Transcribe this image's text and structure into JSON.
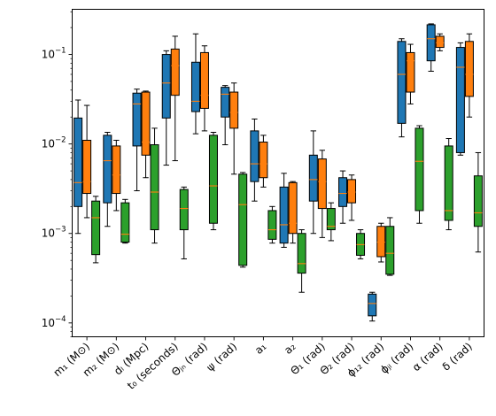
{
  "chart_data": {
    "type": "box",
    "y_scale": "log",
    "ylim": [
      7e-05,
      0.32
    ],
    "y_ticks": [
      {
        "value": 0.0001,
        "base": "10",
        "exp": "−4"
      },
      {
        "value": 0.001,
        "base": "10",
        "exp": "−3"
      },
      {
        "value": 0.01,
        "base": "10",
        "exp": "−2"
      },
      {
        "value": 0.1,
        "base": "10",
        "exp": "−1"
      }
    ],
    "grid": false,
    "legend": null,
    "series_colors": [
      "#1f77b4",
      "#ff7f0e",
      "#2ca02c"
    ],
    "median_color": "#ff7f0e",
    "categories": [
      {
        "label": "m₁ (M⊙)"
      },
      {
        "label": "m₂ (M⊙)"
      },
      {
        "label": "dₗ (Mpc)"
      },
      {
        "label": "t₀ (seconds)"
      },
      {
        "label": "Θⱼₙ (rad)"
      },
      {
        "label": "ψ (rad)"
      },
      {
        "label": "a₁"
      },
      {
        "label": "a₂"
      },
      {
        "label": "Θ₁ (rad)"
      },
      {
        "label": "Θ₂ (rad)"
      },
      {
        "label": "ϕ₁₂ (rad)"
      },
      {
        "label": "ϕⱼₗ (rad)"
      },
      {
        "label": "α (rad)"
      },
      {
        "label": "δ (rad)"
      }
    ],
    "series": [
      {
        "values": [
          {
            "whislo": 0.001,
            "q1": 0.002,
            "med": 0.0037,
            "q3": 0.0195,
            "whishi": 0.031
          },
          {
            "whislo": 0.0012,
            "q1": 0.0022,
            "med": 0.0065,
            "q3": 0.0125,
            "whishi": 0.0135
          },
          {
            "whislo": 0.003,
            "q1": 0.0095,
            "med": 0.028,
            "q3": 0.037,
            "whishi": 0.041
          },
          {
            "whislo": 0.0058,
            "q1": 0.0195,
            "med": 0.048,
            "q3": 0.1,
            "whishi": 0.11
          },
          {
            "whislo": 0.013,
            "q1": 0.023,
            "med": 0.03,
            "q3": 0.082,
            "whishi": 0.17
          },
          {
            "whislo": 0.0098,
            "q1": 0.02,
            "med": 0.036,
            "q3": 0.043,
            "whishi": 0.045
          },
          {
            "whislo": 0.0023,
            "q1": 0.0038,
            "med": 0.006,
            "q3": 0.014,
            "whishi": 0.019
          },
          {
            "whislo": 0.0007,
            "q1": 0.00078,
            "med": 0.00125,
            "q3": 0.0033,
            "whishi": 0.0047
          },
          {
            "whislo": 0.001,
            "q1": 0.0023,
            "med": 0.004,
            "q3": 0.0075,
            "whishi": 0.014
          },
          {
            "whislo": 0.0013,
            "q1": 0.002,
            "med": 0.0028,
            "q3": 0.0042,
            "whishi": 0.005
          },
          {
            "whislo": 0.000105,
            "q1": 0.00012,
            "med": 0.000165,
            "q3": 0.00021,
            "whishi": 0.00022
          },
          {
            "whislo": 0.012,
            "q1": 0.017,
            "med": 0.06,
            "q3": 0.14,
            "whishi": 0.15
          },
          {
            "whislo": 0.065,
            "q1": 0.085,
            "med": 0.15,
            "q3": 0.215,
            "whishi": 0.22
          },
          {
            "whislo": 0.0075,
            "q1": 0.008,
            "med": 0.072,
            "q3": 0.12,
            "whishi": 0.135
          }
        ]
      },
      {
        "values": [
          {
            "whislo": 0.0015,
            "q1": 0.0028,
            "med": 0.0038,
            "q3": 0.011,
            "whishi": 0.027
          },
          {
            "whislo": 0.0018,
            "q1": 0.0028,
            "med": 0.0045,
            "q3": 0.0095,
            "whishi": 0.011
          },
          {
            "whislo": 0.0042,
            "q1": 0.0075,
            "med": 0.0105,
            "q3": 0.038,
            "whishi": 0.039
          },
          {
            "whislo": 0.0065,
            "q1": 0.035,
            "med": 0.075,
            "q3": 0.115,
            "whishi": 0.16
          },
          {
            "whislo": 0.014,
            "q1": 0.025,
            "med": 0.035,
            "q3": 0.105,
            "whishi": 0.125
          },
          {
            "whislo": 0.0046,
            "q1": 0.015,
            "med": 0.0225,
            "q3": 0.038,
            "whishi": 0.048
          },
          {
            "whislo": 0.0033,
            "q1": 0.0042,
            "med": 0.006,
            "q3": 0.0105,
            "whishi": 0.0125
          },
          {
            "whislo": 0.00078,
            "q1": 0.001,
            "med": 0.0013,
            "q3": 0.0037,
            "whishi": 0.0038
          },
          {
            "whislo": 0.0009,
            "q1": 0.0019,
            "med": 0.0038,
            "q3": 0.0068,
            "whishi": 0.0085
          },
          {
            "whislo": 0.0014,
            "q1": 0.0022,
            "med": 0.0029,
            "q3": 0.004,
            "whishi": 0.0045
          },
          {
            "whislo": 0.00048,
            "q1": 0.00055,
            "med": 0.0008,
            "q3": 0.0012,
            "whishi": 0.0013
          },
          {
            "whislo": 0.028,
            "q1": 0.038,
            "med": 0.085,
            "q3": 0.105,
            "whishi": 0.13
          },
          {
            "whislo": 0.11,
            "q1": 0.12,
            "med": 0.135,
            "q3": 0.16,
            "whishi": 0.17
          },
          {
            "whislo": 0.02,
            "q1": 0.034,
            "med": 0.06,
            "q3": 0.14,
            "whishi": 0.17
          }
        ]
      },
      {
        "values": [
          {
            "whislo": 0.00047,
            "q1": 0.00058,
            "med": 0.0015,
            "q3": 0.0023,
            "whishi": 0.0026
          },
          {
            "whislo": 0.00078,
            "q1": 0.0008,
            "med": 0.00098,
            "q3": 0.0022,
            "whishi": 0.0024
          },
          {
            "whislo": 0.00078,
            "q1": 0.0011,
            "med": 0.0029,
            "q3": 0.0098,
            "whishi": 0.015
          },
          {
            "whislo": 0.00052,
            "q1": 0.0011,
            "med": 0.0019,
            "q3": 0.0031,
            "whishi": 0.0033
          },
          {
            "whislo": 0.0011,
            "q1": 0.0013,
            "med": 0.0034,
            "q3": 0.0125,
            "whishi": 0.0135
          },
          {
            "whislo": 0.00042,
            "q1": 0.00044,
            "med": 0.0021,
            "q3": 0.0046,
            "whishi": 0.0048
          },
          {
            "whislo": 0.00078,
            "q1": 0.00086,
            "med": 0.0011,
            "q3": 0.0018,
            "whishi": 0.002
          },
          {
            "whislo": 0.00022,
            "q1": 0.00036,
            "med": 0.00046,
            "q3": 0.001,
            "whishi": 0.0011
          },
          {
            "whislo": 0.00083,
            "q1": 0.0011,
            "med": 0.0012,
            "q3": 0.0019,
            "whishi": 0.0022
          },
          {
            "whislo": 0.00052,
            "q1": 0.00057,
            "med": 0.00075,
            "q3": 0.001,
            "whishi": 0.0011
          },
          {
            "whislo": 0.00034,
            "q1": 0.00035,
            "med": 0.0006,
            "q3": 0.0012,
            "whishi": 0.0015
          },
          {
            "whislo": 0.0013,
            "q1": 0.0018,
            "med": 0.0064,
            "q3": 0.015,
            "whishi": 0.016
          },
          {
            "whislo": 0.0011,
            "q1": 0.0014,
            "med": 0.0018,
            "q3": 0.0095,
            "whishi": 0.0115
          },
          {
            "whislo": 0.00062,
            "q1": 0.0012,
            "med": 0.0017,
            "q3": 0.0044,
            "whishi": 0.008
          }
        ]
      }
    ]
  }
}
